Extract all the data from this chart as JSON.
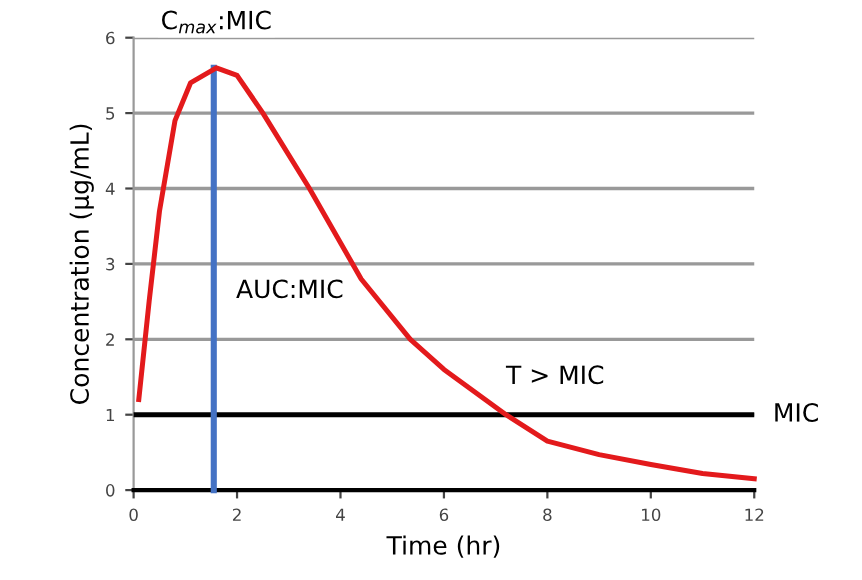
{
  "chart_data": {
    "type": "line",
    "xlabel": "Time (hr)",
    "ylabel": "Concentration (µg/mL)",
    "xlim": [
      0,
      12
    ],
    "xticks": [
      0,
      2,
      4,
      6,
      8,
      10,
      12
    ],
    "ylim": [
      0,
      6
    ],
    "yticks": [
      0,
      1,
      2,
      3,
      4,
      5,
      6
    ],
    "grid": "y",
    "series": [
      {
        "color": "#e31a1c",
        "x": [
          0.1,
          0.3,
          0.5,
          0.8,
          1.1,
          1.6,
          2.0,
          2.5,
          3.4,
          4.4,
          5.35,
          6.0,
          7.2,
          8.0,
          9.0,
          10.0,
          11.0,
          12.0
        ],
        "values": [
          1.2,
          2.5,
          3.7,
          4.9,
          5.4,
          5.6,
          5.5,
          5.0,
          4.0,
          2.8,
          2.0,
          1.6,
          1.0,
          0.65,
          0.47,
          0.34,
          0.22,
          0.15
        ]
      },
      {
        "color": "#4472c4",
        "x": [
          1.55,
          1.55
        ],
        "values": [
          0,
          5.6
        ]
      }
    ],
    "ref_lines": [
      {
        "axis": "y",
        "value": 1,
        "label": "MIC",
        "color": "#000000"
      }
    ],
    "annotations": [
      {
        "text": "C$_{max}$:MIC",
        "x": 1.6,
        "y": 5.6
      },
      "AUC:MIC",
      "T > MIC"
    ]
  }
}
